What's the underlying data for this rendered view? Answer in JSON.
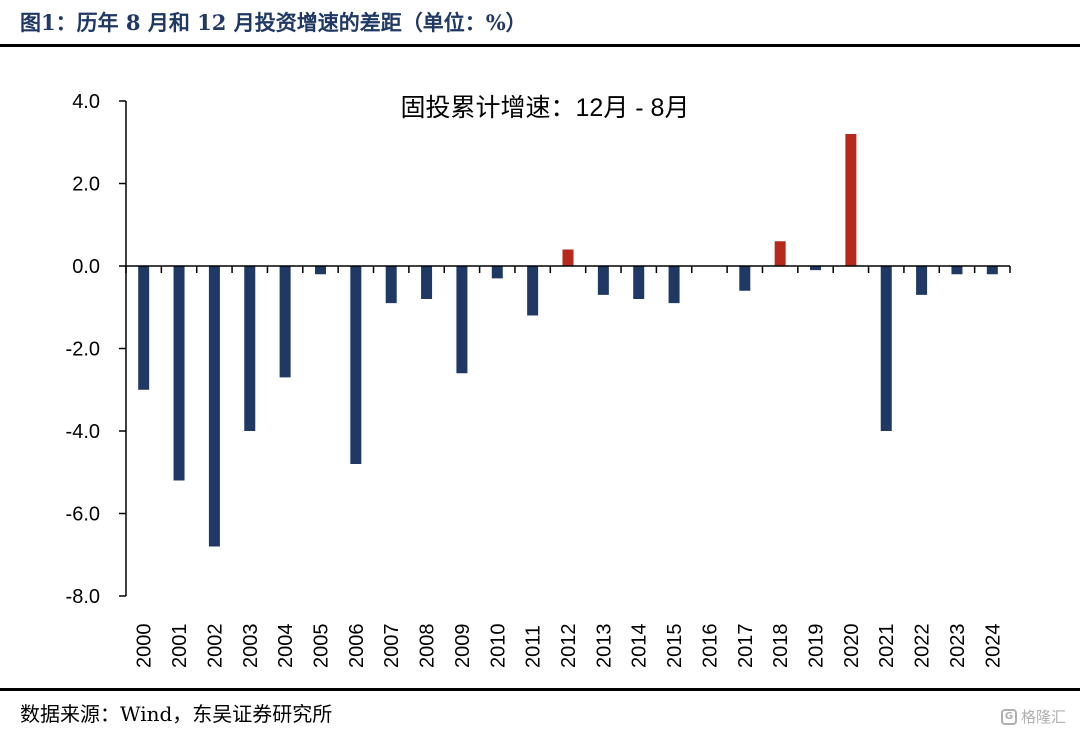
{
  "figure_title": "图1：历年 8 月和 12 月投资增速的差距（单位：%）",
  "source": "数据来源：Wind，东吴证券研究所",
  "watermark": "格隆汇",
  "colors": {
    "negative": "#1f3864",
    "positive": "#b52a1c",
    "title": "#1f3864"
  },
  "chart_data": {
    "type": "bar",
    "annotation": "固投累计增速：12月 - 8月",
    "categories": [
      "2000",
      "2001",
      "2002",
      "2003",
      "2004",
      "2005",
      "2006",
      "2007",
      "2008",
      "2009",
      "2010",
      "2011",
      "2012",
      "2013",
      "2014",
      "2015",
      "2016",
      "2017",
      "2018",
      "2019",
      "2020",
      "2021",
      "2022",
      "2023",
      "2024"
    ],
    "values": [
      -3.0,
      -5.2,
      -6.8,
      -4.0,
      -2.7,
      -0.2,
      -4.8,
      -0.9,
      -0.8,
      -2.6,
      -0.3,
      -1.2,
      0.4,
      -0.7,
      -0.8,
      -0.9,
      0.0,
      -0.6,
      0.6,
      -0.1,
      3.2,
      -4.0,
      -0.7,
      -0.2,
      -0.2
    ],
    "yticks": [
      "4.0",
      "2.0",
      "0.0",
      "-2.0",
      "-4.0",
      "-6.0",
      "-8.0"
    ],
    "ylim": [
      -8,
      4
    ],
    "xlabel": "",
    "ylabel": "",
    "grid": false,
    "legend": false
  }
}
